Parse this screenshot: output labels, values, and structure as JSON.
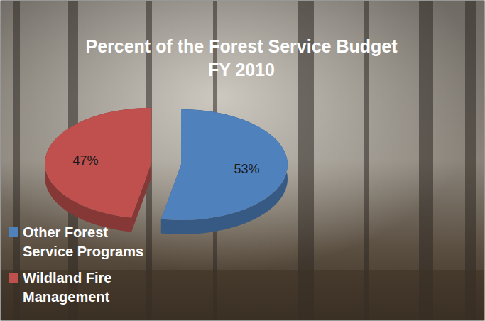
{
  "chart_data": {
    "type": "pie",
    "title": "Percent of the Forest Service Budget",
    "subtitle": "FY 2010",
    "categories": [
      "Other Forest Service Programs",
      "Wildland Fire Management"
    ],
    "values": [
      53,
      47
    ],
    "value_labels": [
      "53%",
      "47%"
    ],
    "colors": [
      "#4f81bd",
      "#c0504d"
    ],
    "data_labels": true,
    "legend": "bottom-left"
  }
}
